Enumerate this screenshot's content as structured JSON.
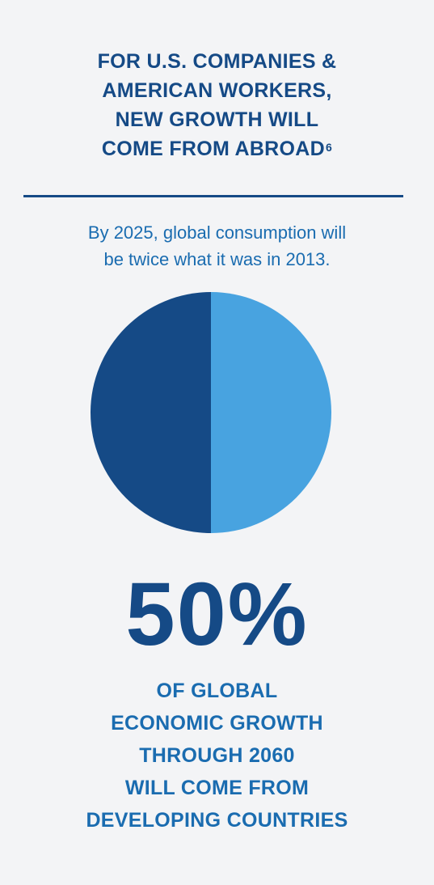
{
  "header": {
    "title_lines": [
      "FOR U.S. COMPANIES &",
      "AMERICAN WORKERS,",
      "NEW GROWTH WILL",
      "COME FROM ABROAD"
    ],
    "footnote_marker": "6"
  },
  "intro": {
    "lines": [
      "By 2025, global consumption will",
      "be twice what it was in 2013."
    ]
  },
  "stat": {
    "value": "50%",
    "caption_lines": [
      "OF GLOBAL",
      "ECONOMIC GROWTH",
      "THROUGH 2060",
      "WILL COME FROM",
      "DEVELOPING COUNTRIES"
    ]
  },
  "colors": {
    "dark_blue": "#154a86",
    "light_blue": "#48a3e0",
    "text_blue": "#1a6cb0",
    "background": "#f3f4f6"
  },
  "chart_data": {
    "type": "pie",
    "start": "top",
    "direction": "clockwise",
    "slices": [
      {
        "value": 50,
        "color": "#48a3e0"
      },
      {
        "value": 50,
        "color": "#154a86"
      }
    ]
  }
}
